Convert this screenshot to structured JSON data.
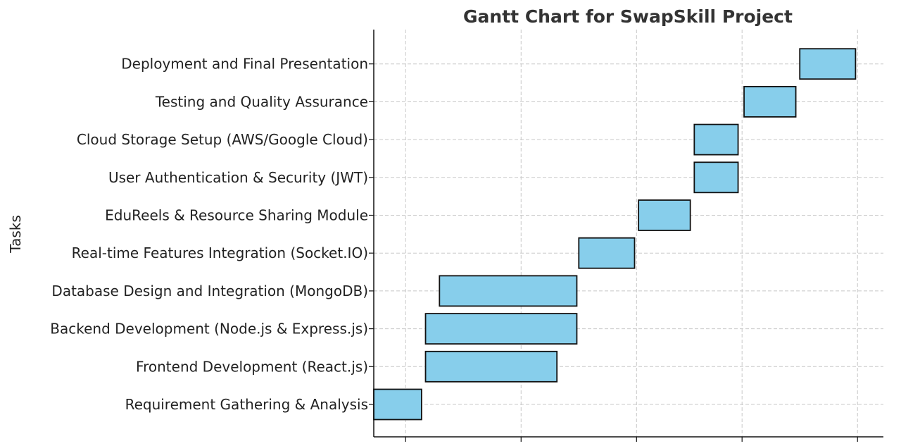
{
  "colors": {
    "bar_fill": "#87CEEB",
    "bar_edge": "#111111",
    "grid": "#c8c8c8"
  },
  "chart_data": {
    "type": "gantt",
    "title": "Gantt Chart for SwapSkill Project",
    "ylabel": "Tasks",
    "xlabel": "",
    "xlim": [
      -16,
      240
    ],
    "xticks": [
      0,
      58,
      116,
      169,
      227
    ],
    "grid": true,
    "tasks": [
      {
        "name": "Requirement Gathering & Analysis",
        "start": -16,
        "end": 8
      },
      {
        "name": "Frontend Development (React.js)",
        "start": 10,
        "end": 76
      },
      {
        "name": "Backend Development (Node.js & Express.js)",
        "start": 10,
        "end": 86
      },
      {
        "name": "Database Design and Integration (MongoDB)",
        "start": 17,
        "end": 86
      },
      {
        "name": "Real-time Features Integration (Socket.IO)",
        "start": 87,
        "end": 115
      },
      {
        "name": "EduReels & Resource Sharing Module",
        "start": 117,
        "end": 143
      },
      {
        "name": "User Authentication & Security (JWT)",
        "start": 145,
        "end": 167
      },
      {
        "name": "Cloud Storage Setup (AWS/Google Cloud)",
        "start": 145,
        "end": 167
      },
      {
        "name": "Testing and Quality Assurance",
        "start": 170,
        "end": 196
      },
      {
        "name": "Deployment and Final Presentation",
        "start": 198,
        "end": 226
      }
    ]
  }
}
